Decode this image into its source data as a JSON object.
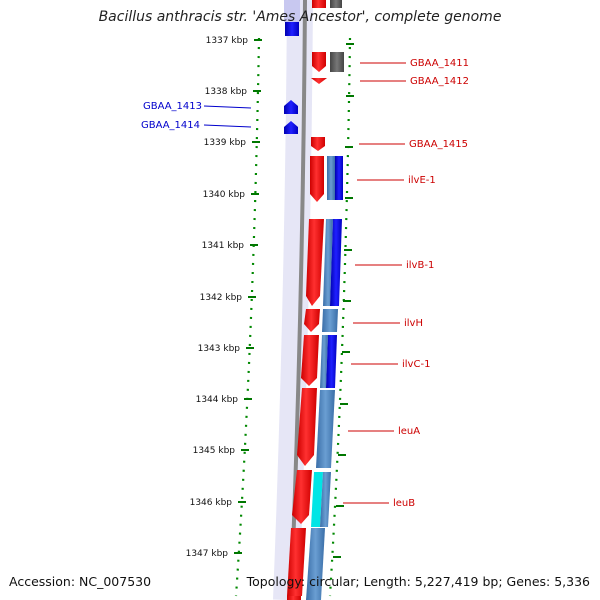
{
  "title": "Bacillus anthracis str. 'Ames Ancestor', complete genome",
  "footer": {
    "accession": "Accession: NC_007530",
    "stats": "Topology: circular; Length: 5,227,419 bp; Genes: 5,336"
  },
  "colors": {
    "forward_gene": "#ff0000",
    "reverse_gene": "#0000ff",
    "dark_gene": "#606060",
    "cds_steelblue": "#4f86c0",
    "cyan_feature": "#00e5e5",
    "backbone": "#888888",
    "tick_green": "#007700",
    "forward_label": "#cc0000",
    "reverse_label": "#0000cc"
  },
  "scale_ticks": [
    "1337 kbp",
    "1338 kbp",
    "1339 kbp",
    "1340 kbp",
    "1341 kbp",
    "1342 kbp",
    "1343 kbp",
    "1344 kbp",
    "1345 kbp",
    "1346 kbp",
    "1347 kbp"
  ],
  "gene_labels": {
    "reverse": [
      "GBAA_1413",
      "GBAA_1414"
    ],
    "forward": [
      "GBAA_1411",
      "GBAA_1412",
      "GBAA_1415",
      "ilvE-1",
      "ilvB-1",
      "ilvH",
      "ilvC-1",
      "leuA",
      "leuB"
    ]
  }
}
